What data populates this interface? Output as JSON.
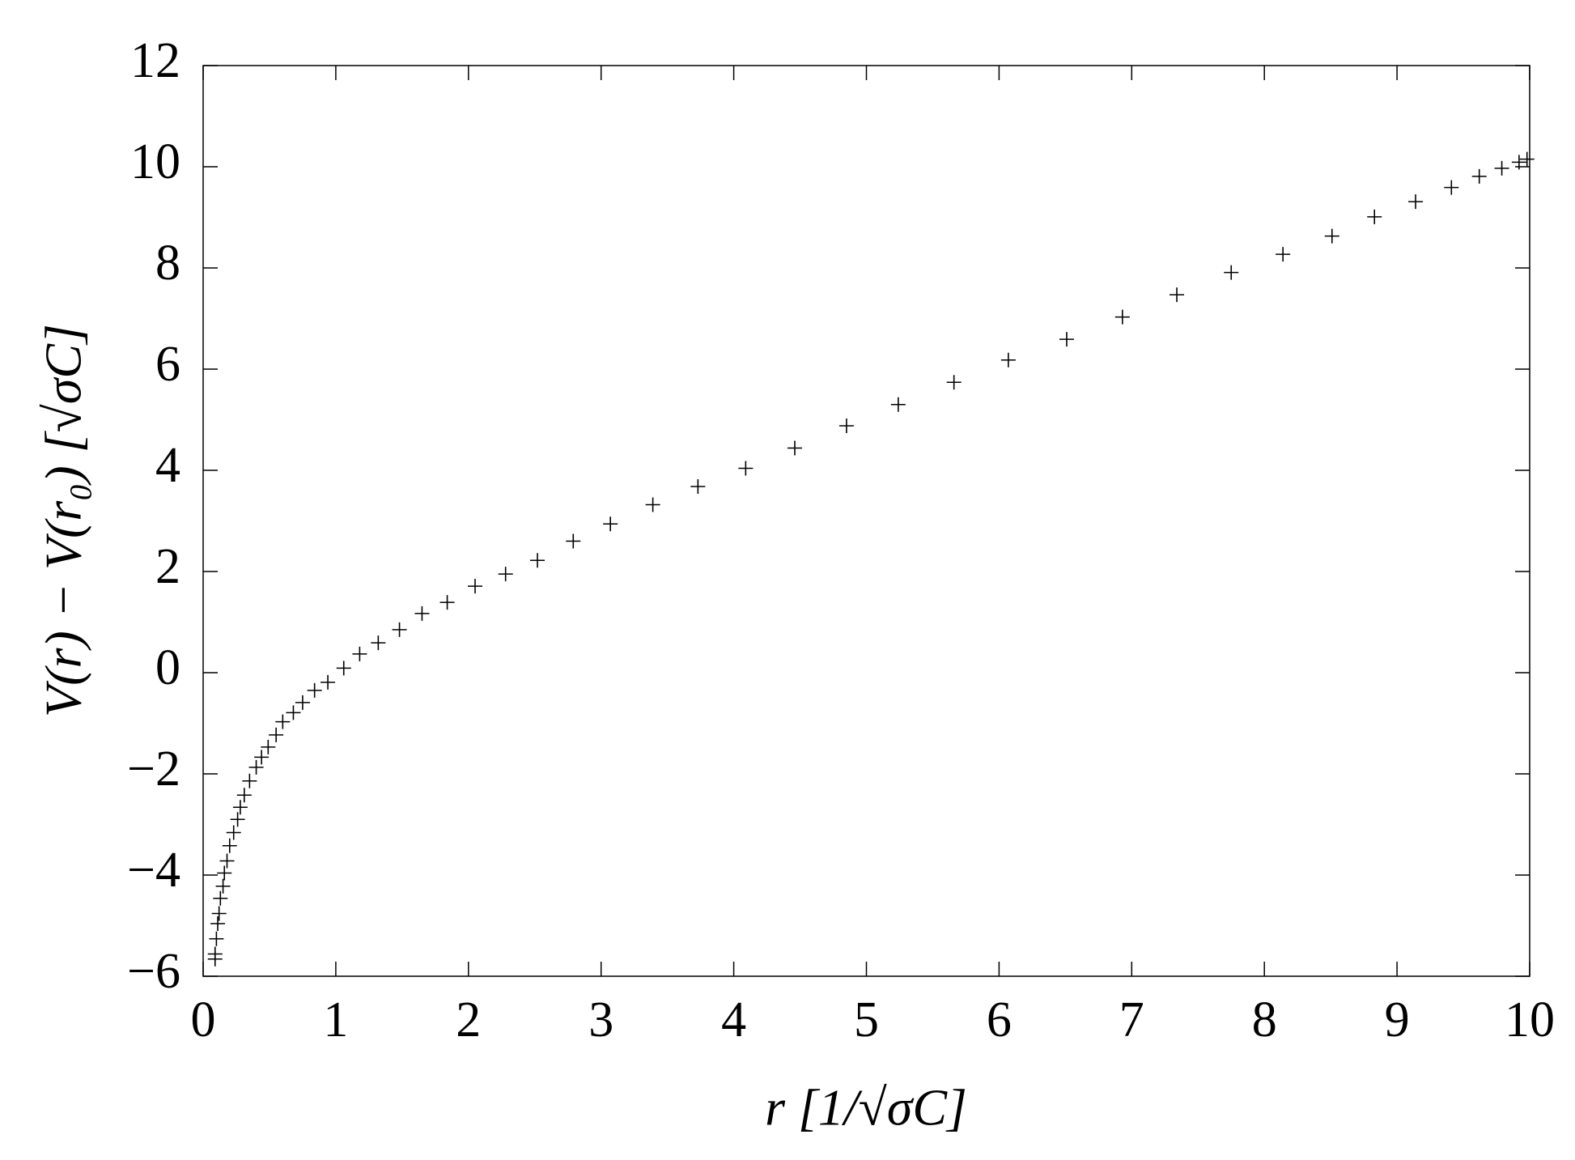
{
  "chart_data": {
    "type": "scatter",
    "marker": "plus",
    "color": "#000000",
    "xlabel": "r [1/√σC]",
    "ylabel": "V(r) − V(r₀) [√σC]",
    "x": [
      0.09,
      0.09,
      0.1,
      0.11,
      0.12,
      0.13,
      0.15,
      0.16,
      0.18,
      0.2,
      0.23,
      0.26,
      0.28,
      0.31,
      0.35,
      0.4,
      0.44,
      0.49,
      0.55,
      0.6,
      0.68,
      0.75,
      0.84,
      0.94,
      1.06,
      1.18,
      1.32,
      1.48,
      1.65,
      1.84,
      2.05,
      2.28,
      2.52,
      2.79,
      3.07,
      3.39,
      3.73,
      4.09,
      4.46,
      4.85,
      5.24,
      5.66,
      6.07,
      6.51,
      6.93,
      7.34,
      7.75,
      8.14,
      8.51,
      8.83,
      9.14,
      9.41,
      9.62,
      9.79,
      9.92,
      9.98
    ],
    "values": [
      -5.66,
      -5.56,
      -5.26,
      -4.96,
      -4.76,
      -4.46,
      -4.22,
      -3.96,
      -3.72,
      -3.42,
      -3.16,
      -2.9,
      -2.66,
      -2.42,
      -2.14,
      -1.87,
      -1.67,
      -1.47,
      -1.23,
      -0.97,
      -0.79,
      -0.59,
      -0.35,
      -0.19,
      0.09,
      0.37,
      0.59,
      0.85,
      1.17,
      1.39,
      1.71,
      1.95,
      2.22,
      2.6,
      2.94,
      3.32,
      3.68,
      4.04,
      4.44,
      4.88,
      5.3,
      5.74,
      6.18,
      6.59,
      7.03,
      7.47,
      7.91,
      8.27,
      8.63,
      9.01,
      9.31,
      9.59,
      9.81,
      9.97,
      10.09,
      10.15
    ],
    "xlim": [
      0,
      10
    ],
    "xticks": [
      0,
      1,
      2,
      3,
      4,
      5,
      6,
      7,
      8,
      9,
      10
    ],
    "ylim": [
      -6,
      12
    ],
    "yticks": [
      {
        "value": -6,
        "label": "−6"
      },
      {
        "value": -4,
        "label": "−4"
      },
      {
        "value": -2,
        "label": "−2"
      },
      0,
      2,
      4,
      6,
      8,
      10,
      12
    ],
    "grid": false
  }
}
